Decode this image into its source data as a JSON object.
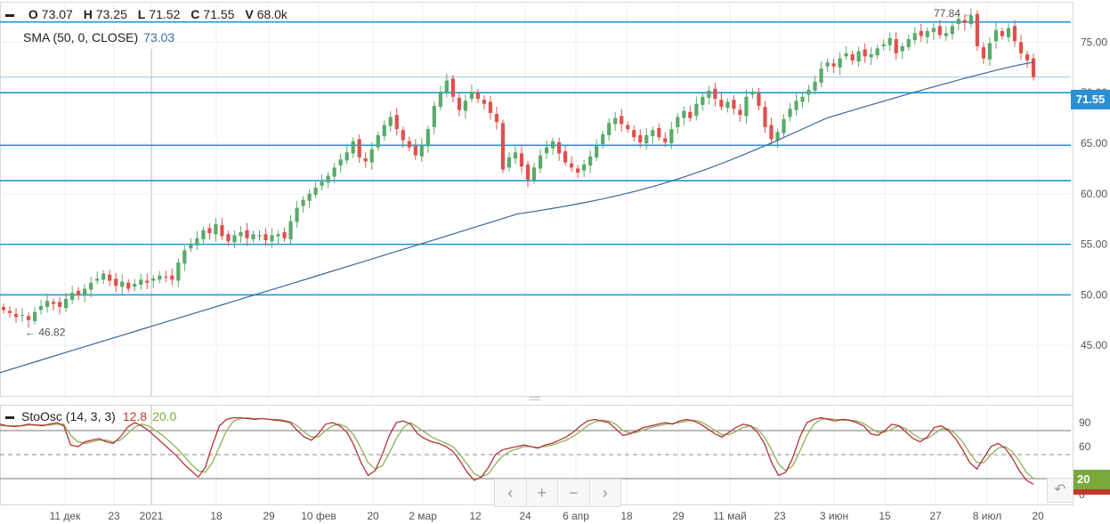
{
  "legend": {
    "o_label": "O",
    "o_value": "73.07",
    "h_label": "H",
    "h_value": "73.25",
    "l_label": "L",
    "l_value": "71.52",
    "c_label": "C",
    "c_value": "71.55",
    "v_label": "V",
    "v_value": "68.0k"
  },
  "sma": {
    "label": "SMA (50, 0, CLOSE)",
    "value": "73.03"
  },
  "stoch": {
    "label": "StoOsc (14, 3, 3)",
    "k_value": "12.8",
    "d_value": "20.0"
  },
  "price_badge": "71.55",
  "osc_badge": "20",
  "nav": {
    "prev": "‹",
    "zoom_in": "+",
    "zoom_out": "−",
    "next": "›"
  },
  "reset_icon": "reset-icon",
  "colors": {
    "up": "#5aa96a",
    "down": "#e0504d",
    "sma": "#3a6796",
    "level": "#1a9bd7",
    "stoch_k": "#b5303a",
    "stoch_d": "#8fb055"
  },
  "chart_data": {
    "type": "candlestick",
    "price_axis": {
      "ylim": [
        40,
        79
      ],
      "ticks": [
        "75.00",
        "70.00",
        "65.00",
        "60.00",
        "55.00",
        "50.00",
        "45.00"
      ]
    },
    "x_ticks": [
      "11 дек",
      "23",
      "2021",
      "18",
      "29",
      "10 фев",
      "20",
      "2 мар",
      "12",
      "24",
      "6 апр",
      "18",
      "29",
      "11 май",
      "23",
      "3 июн",
      "15",
      "27",
      "8 июл",
      "20"
    ],
    "levels": [
      77.0,
      70.0,
      64.8,
      61.3,
      55.0,
      50.0
    ],
    "annotations": [
      {
        "text": "77.84",
        "value": 77.84
      },
      {
        "text": "46.82",
        "value": 46.82
      }
    ],
    "close": [
      48.5,
      48.2,
      47.8,
      48.0,
      47.5,
      48.3,
      48.9,
      49.4,
      49.1,
      48.8,
      49.6,
      50.2,
      50.0,
      50.6,
      51.2,
      51.6,
      52.1,
      51.4,
      50.9,
      51.3,
      50.6,
      51.1,
      51.5,
      51.2,
      51.6,
      51.9,
      51.7,
      51.5,
      53.2,
      54.4,
      55.0,
      55.6,
      56.4,
      56.1,
      57.0,
      55.8,
      55.3,
      55.9,
      56.2,
      55.6,
      56.0,
      55.8,
      55.4,
      55.9,
      56.0,
      55.6,
      57.3,
      58.6,
      59.4,
      60.0,
      60.6,
      61.2,
      61.8,
      62.6,
      63.4,
      64.1,
      65.2,
      63.6,
      63.2,
      64.4,
      65.8,
      66.8,
      67.6,
      66.4,
      65.3,
      64.6,
      63.8,
      64.8,
      66.4,
      68.7,
      70.1,
      71.2,
      69.6,
      68.3,
      69.2,
      70.1,
      69.4,
      68.9,
      68.0,
      67.1,
      62.4,
      63.6,
      64.1,
      62.7,
      61.4,
      62.6,
      63.8,
      64.6,
      65.2,
      64.0,
      63.1,
      62.6,
      62.1,
      62.9,
      63.7,
      64.7,
      65.9,
      67.0,
      67.5,
      66.9,
      66.4,
      65.6,
      65.1,
      65.8,
      66.3,
      65.6,
      65.1,
      66.4,
      67.6,
      68.2,
      67.5,
      68.9,
      69.6,
      70.2,
      69.4,
      68.6,
      69.1,
      68.4,
      67.8,
      69.6,
      70.1,
      68.7,
      66.6,
      65.4,
      66.1,
      67.4,
      68.4,
      69.2,
      69.6,
      70.3,
      71.1,
      72.4,
      73.0,
      72.6,
      73.4,
      73.9,
      73.2,
      74.1,
      73.6,
      73.8,
      74.4,
      74.8,
      75.4,
      73.9,
      74.6,
      75.3,
      75.9,
      75.6,
      76.1,
      76.4,
      75.7,
      75.9,
      76.6,
      77.3,
      76.9,
      77.6,
      74.6,
      73.4,
      74.9,
      76.2,
      75.6,
      76.4,
      75.1,
      73.9,
      73.2,
      71.55
    ],
    "sma": {
      "name": "SMA (50, 0, CLOSE)",
      "start": 42.3,
      "end": 73.03
    },
    "stoch_axis": {
      "ylim": [
        0,
        100
      ],
      "ticks": [
        "90",
        "60",
        "0"
      ],
      "levels": [
        80,
        50,
        20
      ]
    },
    "stoch_k": [
      88,
      86,
      85,
      86,
      88,
      87,
      86,
      88,
      90,
      86,
      62,
      60,
      66,
      68,
      70,
      66,
      64,
      72,
      84,
      90,
      86,
      80,
      72,
      64,
      56,
      48,
      38,
      30,
      22,
      34,
      62,
      86,
      94,
      96,
      96,
      95,
      94,
      95,
      94,
      93,
      92,
      90,
      80,
      72,
      68,
      76,
      88,
      90,
      86,
      78,
      62,
      40,
      24,
      30,
      50,
      74,
      90,
      92,
      88,
      76,
      70,
      66,
      64,
      60,
      54,
      42,
      28,
      18,
      22,
      34,
      50,
      56,
      58,
      60,
      62,
      60,
      58,
      62,
      64,
      68,
      72,
      78,
      86,
      92,
      94,
      92,
      90,
      82,
      74,
      76,
      80,
      84,
      86,
      88,
      90,
      88,
      92,
      94,
      92,
      88,
      82,
      76,
      72,
      78,
      84,
      88,
      86,
      78,
      64,
      40,
      24,
      28,
      46,
      72,
      90,
      94,
      96,
      94,
      92,
      94,
      93,
      90,
      86,
      76,
      74,
      80,
      88,
      86,
      78,
      70,
      66,
      72,
      84,
      86,
      80,
      70,
      56,
      40,
      32,
      46,
      60,
      64,
      58,
      46,
      30,
      18,
      13
    ],
    "stoch_d": [
      86,
      86,
      86,
      86,
      87,
      87,
      87,
      87,
      88,
      88,
      74,
      66,
      64,
      66,
      68,
      68,
      66,
      68,
      76,
      84,
      88,
      86,
      80,
      74,
      66,
      58,
      48,
      38,
      30,
      28,
      40,
      60,
      80,
      92,
      95,
      96,
      95,
      95,
      94,
      94,
      93,
      91,
      86,
      78,
      72,
      72,
      80,
      86,
      88,
      84,
      74,
      58,
      40,
      32,
      36,
      52,
      70,
      84,
      90,
      84,
      78,
      72,
      68,
      64,
      60,
      50,
      38,
      26,
      22,
      26,
      38,
      48,
      54,
      57,
      60,
      60,
      59,
      60,
      62,
      65,
      68,
      73,
      79,
      86,
      91,
      93,
      92,
      88,
      80,
      77,
      78,
      81,
      84,
      86,
      88,
      89,
      90,
      92,
      93,
      91,
      86,
      80,
      75,
      75,
      79,
      84,
      86,
      82,
      72,
      56,
      38,
      30,
      36,
      54,
      74,
      88,
      94,
      95,
      94,
      93,
      93,
      92,
      89,
      83,
      78,
      78,
      82,
      86,
      82,
      76,
      70,
      70,
      76,
      82,
      82,
      76,
      66,
      52,
      40,
      40,
      50,
      58,
      60,
      54,
      42,
      28,
      20
    ]
  }
}
